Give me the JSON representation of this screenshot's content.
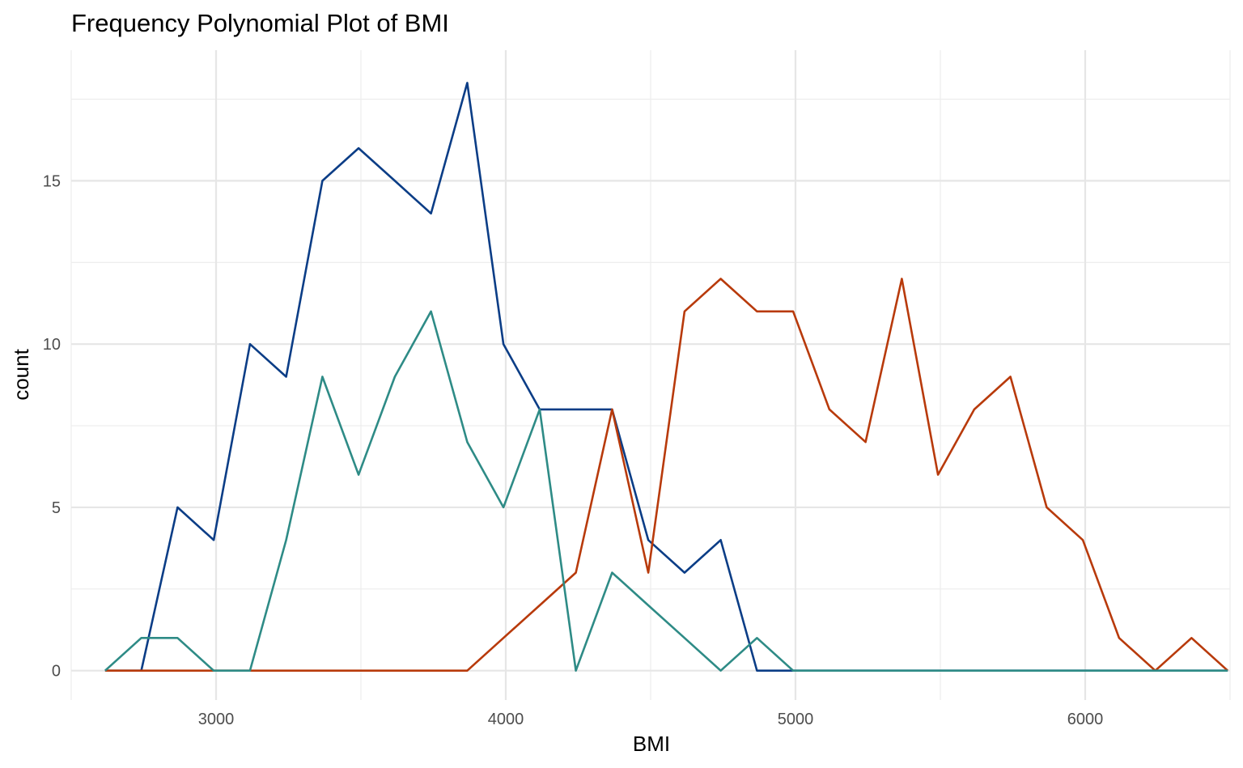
{
  "chart_data": {
    "type": "line",
    "title": "Frequency Polynomial Plot of BMI",
    "xlabel": "BMI",
    "ylabel": "count",
    "xlim": [
      2500,
      6500
    ],
    "ylim": [
      -0.9,
      19
    ],
    "x_ticks": [
      3000,
      4000,
      5000,
      6000
    ],
    "y_ticks": [
      0,
      5,
      10,
      15
    ],
    "grid": true,
    "legend": "none",
    "series": [
      {
        "color": "#0b3d86",
        "x": [
          2617,
          2742,
          2867,
          2992,
          3117,
          3242,
          3367,
          3492,
          3617,
          3742,
          3867,
          3992,
          4117,
          4242,
          4367,
          4492,
          4617,
          4742,
          4867,
          4992,
          5117,
          5242,
          5367,
          5492,
          5617,
          5742,
          5867,
          5992,
          6117,
          6242,
          6367,
          6492
        ],
        "values": [
          0,
          0,
          5,
          4,
          10,
          9,
          15,
          16,
          15,
          14,
          18,
          10,
          8,
          8,
          8,
          4,
          3,
          4,
          0,
          0,
          0,
          0,
          0,
          0,
          0,
          0,
          0,
          0,
          0,
          0,
          0,
          0
        ]
      },
      {
        "color": "#b83a0b",
        "x": [
          2617,
          2742,
          2867,
          2992,
          3117,
          3242,
          3367,
          3492,
          3617,
          3742,
          3867,
          3992,
          4117,
          4242,
          4367,
          4492,
          4617,
          4742,
          4867,
          4992,
          5117,
          5242,
          5367,
          5492,
          5617,
          5742,
          5867,
          5992,
          6117,
          6242,
          6367,
          6492
        ],
        "values": [
          0,
          0,
          0,
          0,
          0,
          0,
          0,
          0,
          0,
          0,
          0,
          1,
          2,
          3,
          8,
          3,
          11,
          12,
          11,
          11,
          8,
          7,
          12,
          6,
          8,
          9,
          5,
          4,
          1,
          0,
          1,
          0
        ]
      },
      {
        "color": "#2e8b86",
        "x": [
          2617,
          2742,
          2867,
          2992,
          3117,
          3242,
          3367,
          3492,
          3617,
          3742,
          3867,
          3992,
          4117,
          4242,
          4367,
          4492,
          4617,
          4742,
          4867,
          4992,
          5117,
          5242,
          5367,
          5492,
          5617,
          5742,
          5867,
          5992,
          6117,
          6242,
          6367,
          6492
        ],
        "values": [
          0,
          1,
          1,
          0,
          0,
          4,
          9,
          6,
          9,
          11,
          7,
          5,
          8,
          0,
          3,
          2,
          1,
          0,
          1,
          0,
          0,
          0,
          0,
          0,
          0,
          0,
          0,
          0,
          0,
          0,
          0,
          0
        ]
      }
    ]
  }
}
